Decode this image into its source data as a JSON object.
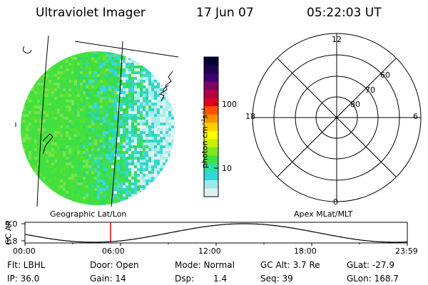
{
  "header": {
    "instrument": "Ultraviolet Imager",
    "date": "17 Jun 07",
    "time": "05:22:03 UT"
  },
  "colorbar": {
    "unit_label": "photon cm⁻²s⁻¹",
    "ticks": [
      "100",
      "10"
    ],
    "colors": [
      "#000033",
      "#200050",
      "#400070",
      "#800060",
      "#b00040",
      "#e00020",
      "#ff5000",
      "#ff9000",
      "#ffd000",
      "#ffff00",
      "#c8f000",
      "#80e820",
      "#40e040",
      "#30e0a0",
      "#30d8d8",
      "#a0e8e8",
      "#e0f0f0"
    ]
  },
  "polar_plot": {
    "mlt_labels": [
      "12",
      "18",
      "6",
      "0"
    ],
    "lat_labels": [
      "60",
      "70",
      "80"
    ]
  },
  "coord_labels": {
    "left": "Geographic Lat/Lon",
    "right": "Apex MLat/MLT"
  },
  "altitude_plot": {
    "ylabel": "GC Alt",
    "y_ticks": [
      "9.0",
      "1.8"
    ],
    "x_ticks": [
      "00:00",
      "06:00",
      "12:00",
      "18:00",
      "23:59"
    ],
    "current_time_marker_hour": 5.37
  },
  "info": {
    "row1": {
      "filter": "Flt: LBHL",
      "door": "Door: Open",
      "mode": "Mode: Normal",
      "gc_alt": "GC Alt: 3.7 Re",
      "glat": "GLat: -27.9"
    },
    "row2": {
      "ip": "IP: 36.0",
      "gain": "Gain: 14",
      "dsp_label": "Dsp:",
      "dsp_value": "1.4",
      "seq": "Seq: 39",
      "glon": "GLon: 168.7"
    }
  }
}
